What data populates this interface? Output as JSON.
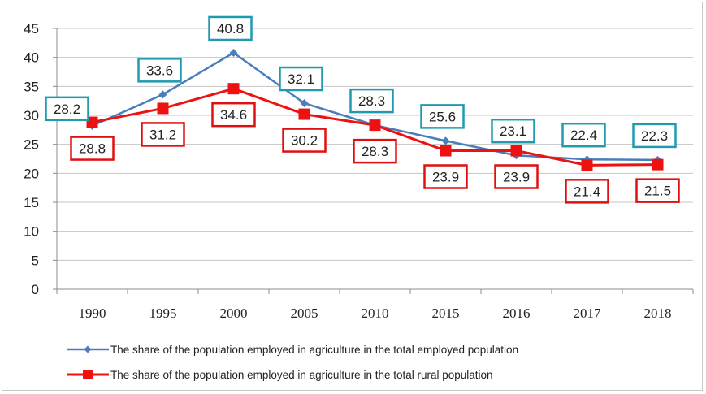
{
  "chart_data": {
    "type": "line",
    "categories": [
      "1990",
      "1995",
      "2000",
      "2005",
      "2010",
      "2015",
      "2016",
      "2017",
      "2018"
    ],
    "ylim": [
      0,
      45
    ],
    "yticks": [
      0,
      5,
      10,
      15,
      20,
      25,
      30,
      35,
      40,
      45
    ],
    "grid": true,
    "legend_position": "bottom",
    "series": [
      {
        "name": "The share of the population employed in agriculture in the total employed population",
        "values": [
          28.2,
          33.6,
          40.8,
          32.1,
          28.3,
          25.6,
          23.1,
          22.4,
          22.3
        ],
        "labels": [
          "28.2",
          "33.6",
          "40.8",
          "32.1",
          "28.3",
          "25.6",
          "23.1",
          "22.4",
          "22.3"
        ],
        "color": "#4a7ebb",
        "label_border_color": "#1f9bb0",
        "marker": "diamond"
      },
      {
        "name": "The share of the population employed in agriculture in the total rural population",
        "values": [
          28.8,
          31.2,
          34.6,
          30.2,
          28.3,
          23.9,
          23.9,
          21.4,
          21.5
        ],
        "labels": [
          "28.8",
          "31.2",
          "34.6",
          "30.2",
          "28.3",
          "23.9",
          "23.9",
          "21.4",
          "21.5"
        ],
        "color": "#ee1111",
        "label_border_color": "#e01010",
        "marker": "square"
      }
    ]
  }
}
